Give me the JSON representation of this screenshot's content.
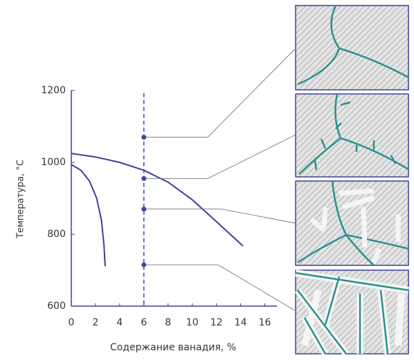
{
  "chart_data": {
    "type": "line",
    "x_label": "Содержание ванадия, %",
    "y_label": "Температура, °С",
    "xlim": [
      0,
      17
    ],
    "xticks": [
      0,
      2,
      4,
      6,
      8,
      10,
      12,
      14,
      16
    ],
    "ylim": [
      600,
      1220
    ],
    "yticks": [
      600,
      800,
      1000,
      1200
    ],
    "series": [
      {
        "color": "#3a3f9c",
        "x": [
          0,
          2,
          4,
          6,
          8,
          10,
          12,
          14.2
        ],
        "values": [
          1025,
          1015,
          1000,
          978,
          945,
          896,
          835,
          767
        ]
      },
      {
        "color": "#3a3f9c",
        "x": [
          0,
          0.8,
          1.5,
          2.1,
          2.5,
          2.7,
          2.8
        ],
        "values": [
          994,
          978,
          948,
          900,
          837,
          770,
          711
        ]
      }
    ],
    "points": {
      "color": "#3b4aa0",
      "x": [
        6,
        6,
        6,
        6
      ],
      "values": [
        1070,
        955,
        870,
        715
      ]
    }
  }
}
